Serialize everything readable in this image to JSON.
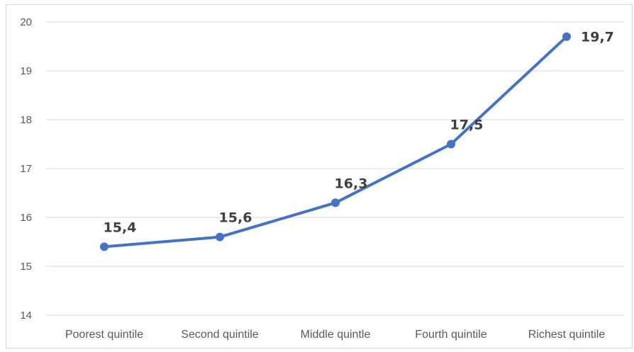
{
  "chart_data": {
    "type": "line",
    "categories": [
      "Poorest quintile",
      "Second quintile",
      "Middle quintle",
      "Fourth quintile",
      "Richest quintile"
    ],
    "values": [
      15.4,
      15.6,
      16.3,
      17.5,
      19.7
    ],
    "data_labels": [
      "15,4",
      "15,6",
      "16,3",
      "17,5",
      "19,7"
    ],
    "yticks": [
      "14",
      "15",
      "16",
      "17",
      "18",
      "19",
      "20"
    ],
    "ylim": [
      14,
      20
    ],
    "grid": true,
    "legend": "none",
    "series_color": "#4472c4",
    "grid_color": "#d9d9d9"
  }
}
